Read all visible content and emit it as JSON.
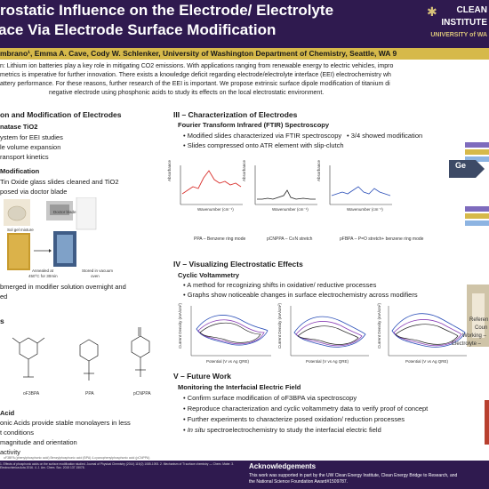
{
  "header": {
    "title_line1": "rostatic Influence on the Electrode/ Electrolyte",
    "title_line2": "ace Via Electrode Surface Modification",
    "logo_line1": "CLEAN",
    "logo_line2": "INSTITUTE",
    "logo_line3": "UNIVERSITY of WA"
  },
  "authors": "mbrano¹, Emma A. Cave, Cody W. Schlenker, University of Washington Department of Chemistry, Seattle, WA 9",
  "abstract": {
    "line1": "n: Lithium ion batteries play a key role in mitigating CO2 emissions. With applications ranging from renewable energy to electric vehicles, impro",
    "line2": "metrics is imperative for further innovation. There exists a knowledge deficit regarding electrode/electrolyte interface (EEI) electrochemistry wh",
    "line3": "attery performance. For these reasons, further research of the EEI is important. We propose extrinsic surface dipole modification of titanium di",
    "line4": "negative electrode using phosphonic acids to study its effects on the local electrostatic environment."
  },
  "col1": {
    "sec1": "on and Modification of Electrodes",
    "sub1": "natase TiO2",
    "b1": "ystem for EEI studies",
    "b2": "le volume expansion",
    "b3": "ransport kinetics",
    "sub2": "Modification",
    "b4": "Tin Oxide glass slides cleaned and TiO2",
    "b5": "posed via doctor blade",
    "cap_solgel": "Sol gel mixture",
    "cap_blade": "Doctor blade",
    "cap_anneal1": "Annealed at",
    "cap_anneal2": "450°C for 30min",
    "cap_vac1": "Stored in vacuum",
    "cap_vac2": "oven",
    "b6": "bmerged in modifier solution overnight and",
    "b7": "ed",
    "sec2": "s",
    "mol1": "oF3BPA",
    "mol2": "PPA",
    "mol3": "pCNPPA",
    "sub3": "Acid",
    "b8": "onic Acids provide stable monolayers in less",
    "b9": "t conditions",
    "b10": "magnitude and orientation",
    "b11": "activity",
    "legend_small": "oF3BPA (phenylphosphonic acid)   Benzylphosphonic acid (BPA)   4-cyanophenylphosphonic acid (pCNPPA)"
  },
  "col2": {
    "sec3": "III – Characterization of Electrodes",
    "sub4": "Fourier Transform Infrared (FTIR) Spectroscopy",
    "b12": "Modified slides characterized via FTIR spectroscopy",
    "b13": "Slides compressed onto ATR element with slip-clutch",
    "b14": "3/4 showed modification",
    "ftir_xlabel": "Wavenumber (cm⁻¹)",
    "ftir_ylabel": "Absorbance",
    "cap_ppa": "PPA – Benzene ring mode",
    "cap_pcn": "pCNPPA – C≡N stretch",
    "cap_pf": "pFBPA – P=O stretch+ benzene ring mode",
    "sec4": "IV – Visualizing Electrostatic Effects",
    "sub5": "Cyclic Voltammetry",
    "b15": "A method for recognizing shifts in oxidative/ reductive processes",
    "b16": "Graphs show noticeable changes in surface electrochemistry across modifiers",
    "cv_xlabel": "Potential (V vs Ag QRE)",
    "cv_ylabel": "Current Density (mA/cm²)",
    "sec5": "V – Future Work",
    "sub6": "Monitoring the Interfacial Electric Field",
    "b17": "Confirm surface modification of oF3BPA via spectroscopy",
    "b18": "Reproduce characterization and cyclic voltammetry data to verify proof of concept",
    "b19": "Further experiments to characterize posed oxidation/ reduction processes",
    "b20_it": "In situ",
    "b20": " spectroelectrochemistry to study the interfacial electric field"
  },
  "col3": {
    "ge": "Ge",
    "ref1": "Referen",
    "ref2": "Coun",
    "ref3": "Working –",
    "ref4": "Electrolyte –"
  },
  "footer": {
    "ack_title": "Acknowledgements",
    "ack1": "This work was supported in part by the UW Clean Energy Institute, Clean Energy Bridge to Research, and",
    "ack2": "the National Science Foundation Award#1509787.",
    "refs": "1. Effects of phosphonic acids on the surface modification studied. Journal of Physical Chemistry (2014) 119(2) 1085-1093. 2. Mechanism of Ti surface chemistry — Chem. Mater. 3. Electrochimica Acta 2016. 4. J. Am. Chem. Soc. 2015 137 15078."
  },
  "colors": {
    "banner": "#2f1a4f",
    "gold": "#d6b94a",
    "ftir_red": "#d9302c",
    "cv_blue": "#2b4fb8",
    "cv_purple": "#8a3fb5",
    "cv_black": "#222222"
  }
}
